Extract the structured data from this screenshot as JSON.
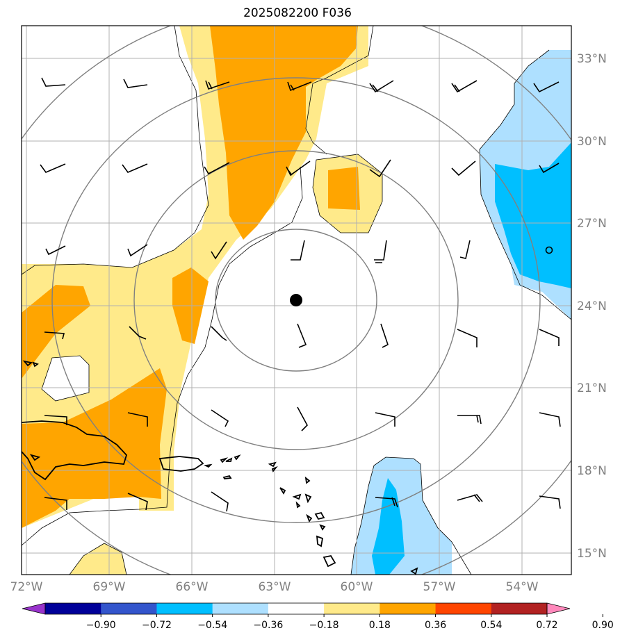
{
  "title": "2025082200 F036",
  "map": {
    "lon_labels": [
      "72°W",
      "69°W",
      "66°W",
      "63°W",
      "60°W",
      "57°W",
      "54°W"
    ],
    "lat_labels": [
      "33°N",
      "30°N",
      "27°N",
      "24°N",
      "21°N",
      "18°N",
      "15°N"
    ],
    "lon_min": -72,
    "lon_max": -52,
    "lat_min": 14.3,
    "lat_max": 34.1,
    "grid": true,
    "center_marker": {
      "lon": -62.2,
      "lat": 24.2
    }
  },
  "colorbar": {
    "labels": [
      "−0.90",
      "−0.72",
      "−0.54",
      "−0.36",
      "−0.18",
      "0.18",
      "0.36",
      "0.54",
      "0.72",
      "0.90"
    ],
    "colors": [
      "#9933cc",
      "#000099",
      "#3355cc",
      "#00bfff",
      "#aee0ff",
      "#ffffff",
      "#ffea8a",
      "#ffa500",
      "#ff4500",
      "#b22222",
      "#ff88bb"
    ],
    "extend": "both"
  }
}
